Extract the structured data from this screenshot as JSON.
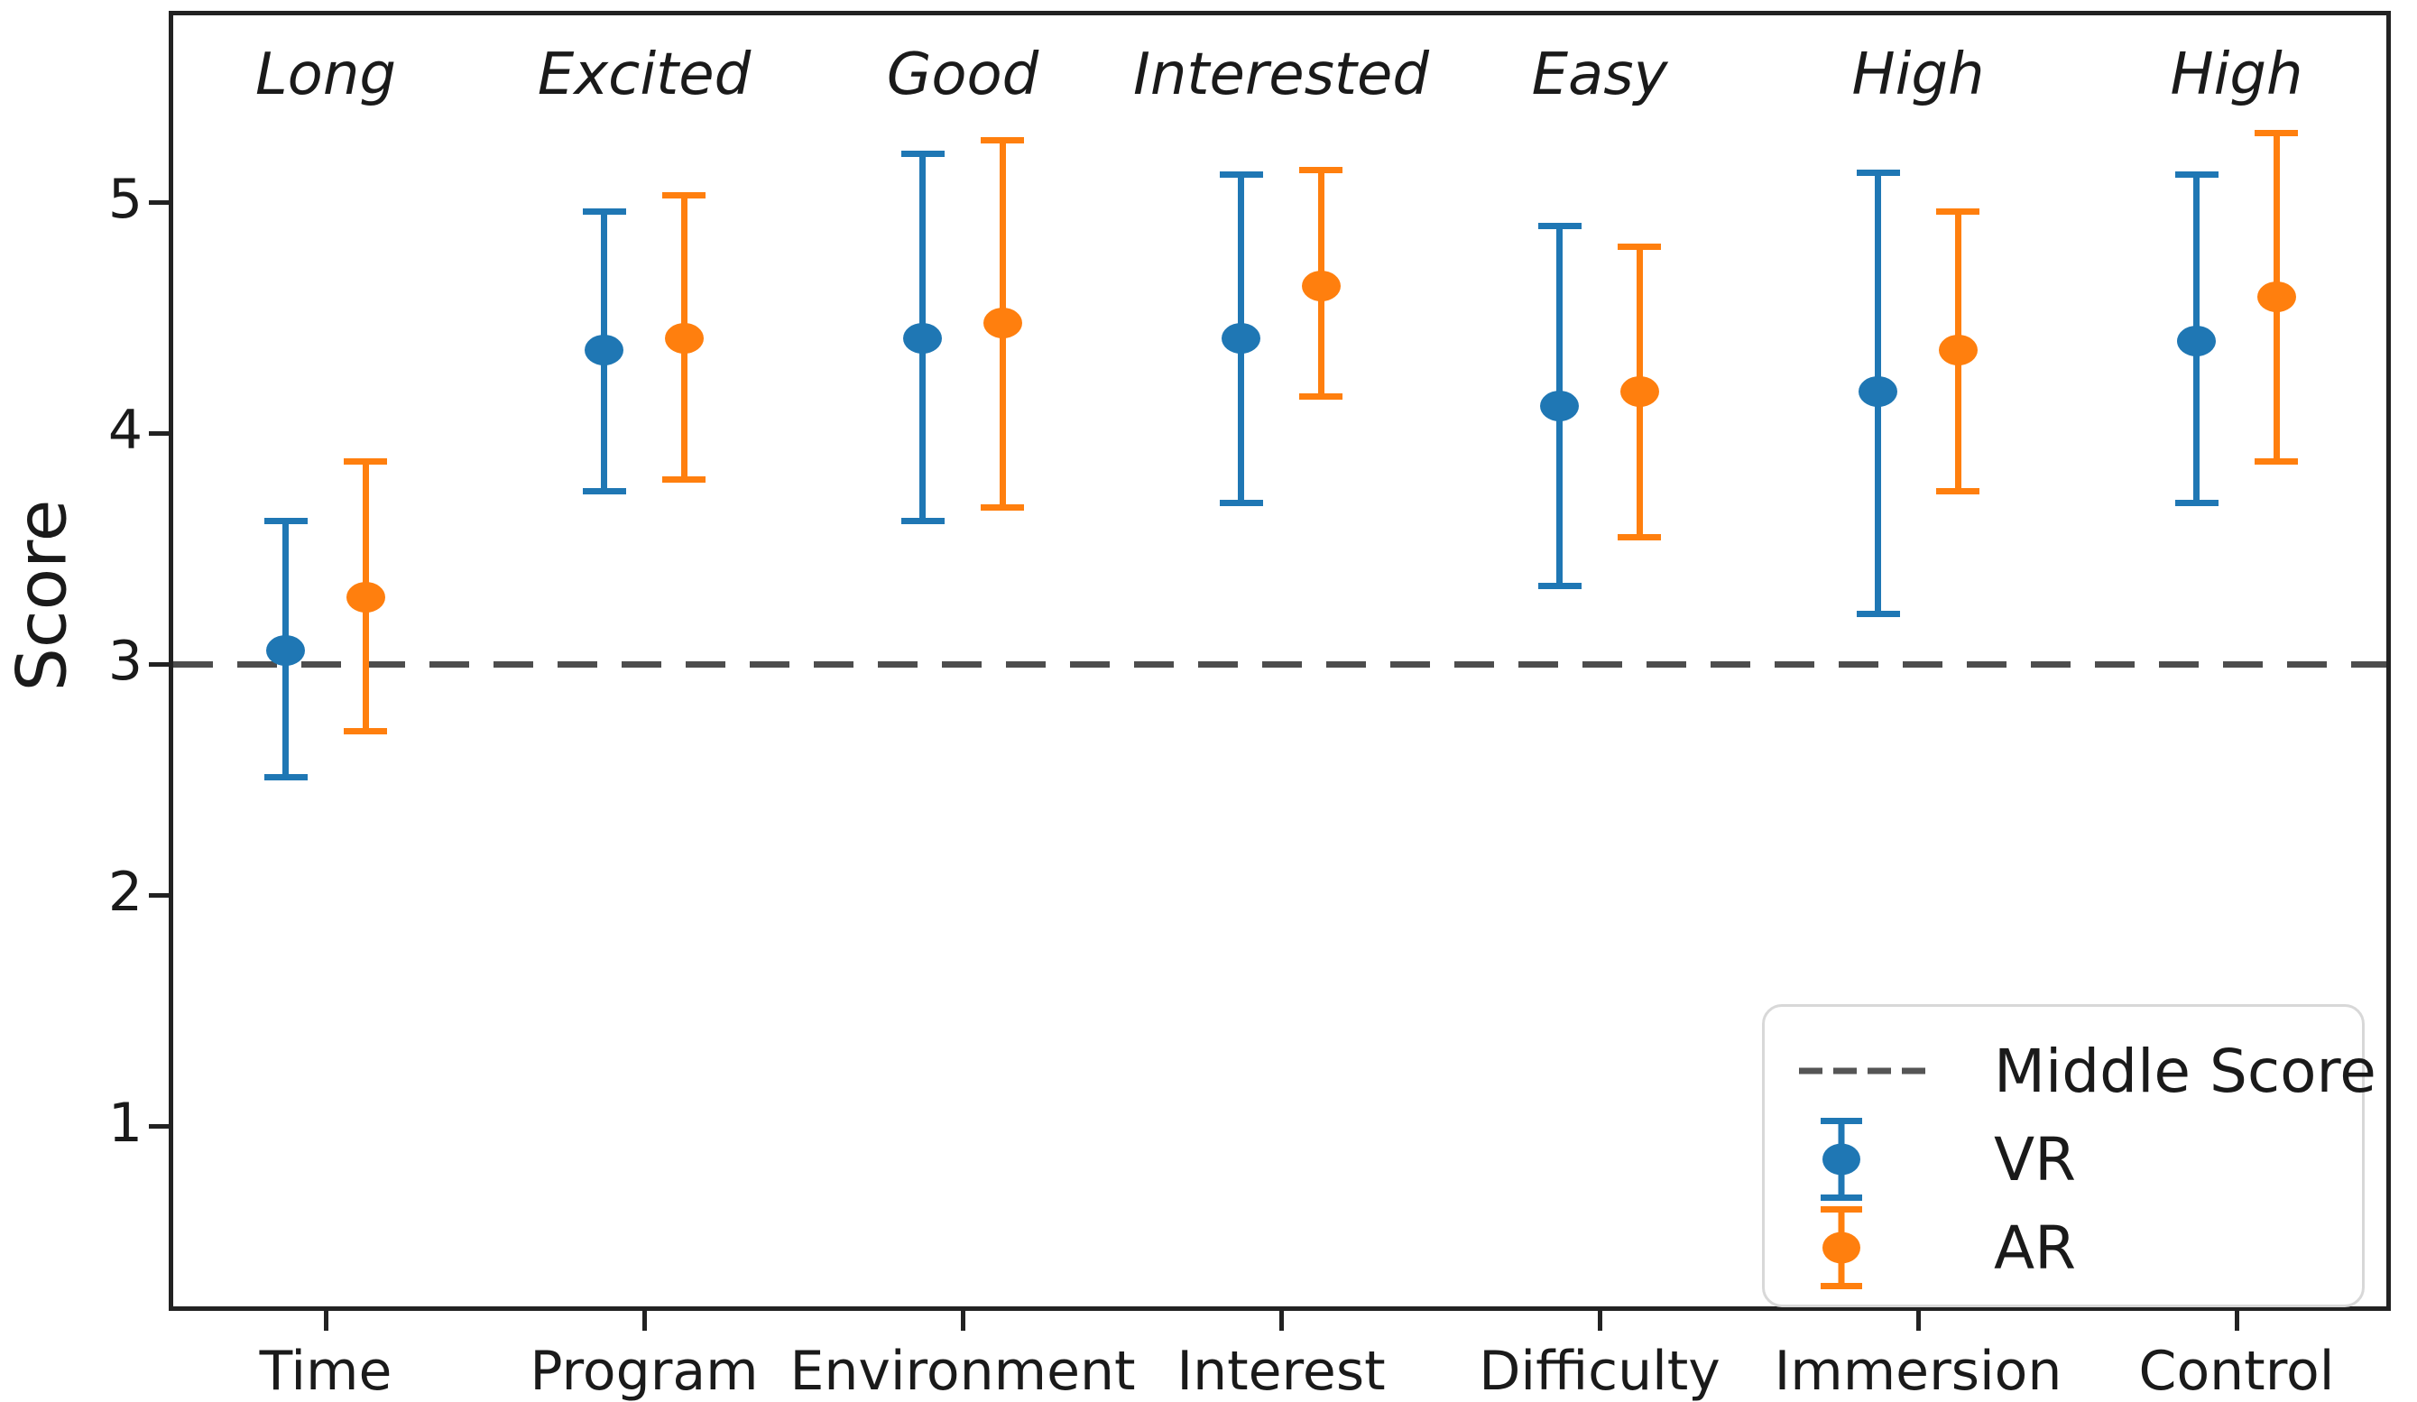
{
  "figure": {
    "background": "#ffffff",
    "spine_color": "#222222",
    "text_color": "#1a1a1a"
  },
  "chart_data": {
    "type": "errorbar",
    "title": "",
    "xlabel": "",
    "ylabel": "Score",
    "categories": [
      "Time",
      "Program",
      "Environment",
      "Interest",
      "Difficulty",
      "Immersion",
      "Control"
    ],
    "annotations": [
      "Long",
      "Excited",
      "Good",
      "Interested",
      "Easy",
      "High",
      "High"
    ],
    "yticks": [
      "1",
      "2",
      "3",
      "4",
      "5"
    ],
    "ylim": [
      0.2,
      5.83
    ],
    "grid": false,
    "middle_line": {
      "y": 3,
      "color": "#4d4d4d",
      "style": "dashed"
    },
    "series": [
      {
        "name": "VR",
        "color": "#1f77b4",
        "offset": -0.125,
        "means": [
          3.06,
          4.36,
          4.41,
          4.41,
          4.12,
          4.18,
          4.4
        ],
        "err_low": [
          2.51,
          3.75,
          3.62,
          3.7,
          3.34,
          3.22,
          3.7
        ],
        "err_high": [
          3.62,
          4.96,
          5.21,
          5.12,
          4.9,
          5.13,
          5.12
        ]
      },
      {
        "name": "AR",
        "color": "#ff7f0e",
        "offset": 0.125,
        "means": [
          3.29,
          4.41,
          4.48,
          4.64,
          4.18,
          4.36,
          4.59
        ],
        "err_low": [
          2.71,
          3.8,
          3.68,
          4.16,
          3.55,
          3.75,
          3.88
        ],
        "err_high": [
          3.88,
          5.03,
          5.27,
          5.14,
          4.81,
          4.96,
          5.3
        ]
      }
    ],
    "legend": {
      "position": "lower right",
      "items": [
        {
          "label": "Middle Score",
          "type": "dashed-line",
          "color": "#555555"
        },
        {
          "label": "VR",
          "type": "errorbar",
          "color": "#1f77b4"
        },
        {
          "label": "AR",
          "type": "errorbar",
          "color": "#ff7f0e"
        }
      ]
    }
  }
}
